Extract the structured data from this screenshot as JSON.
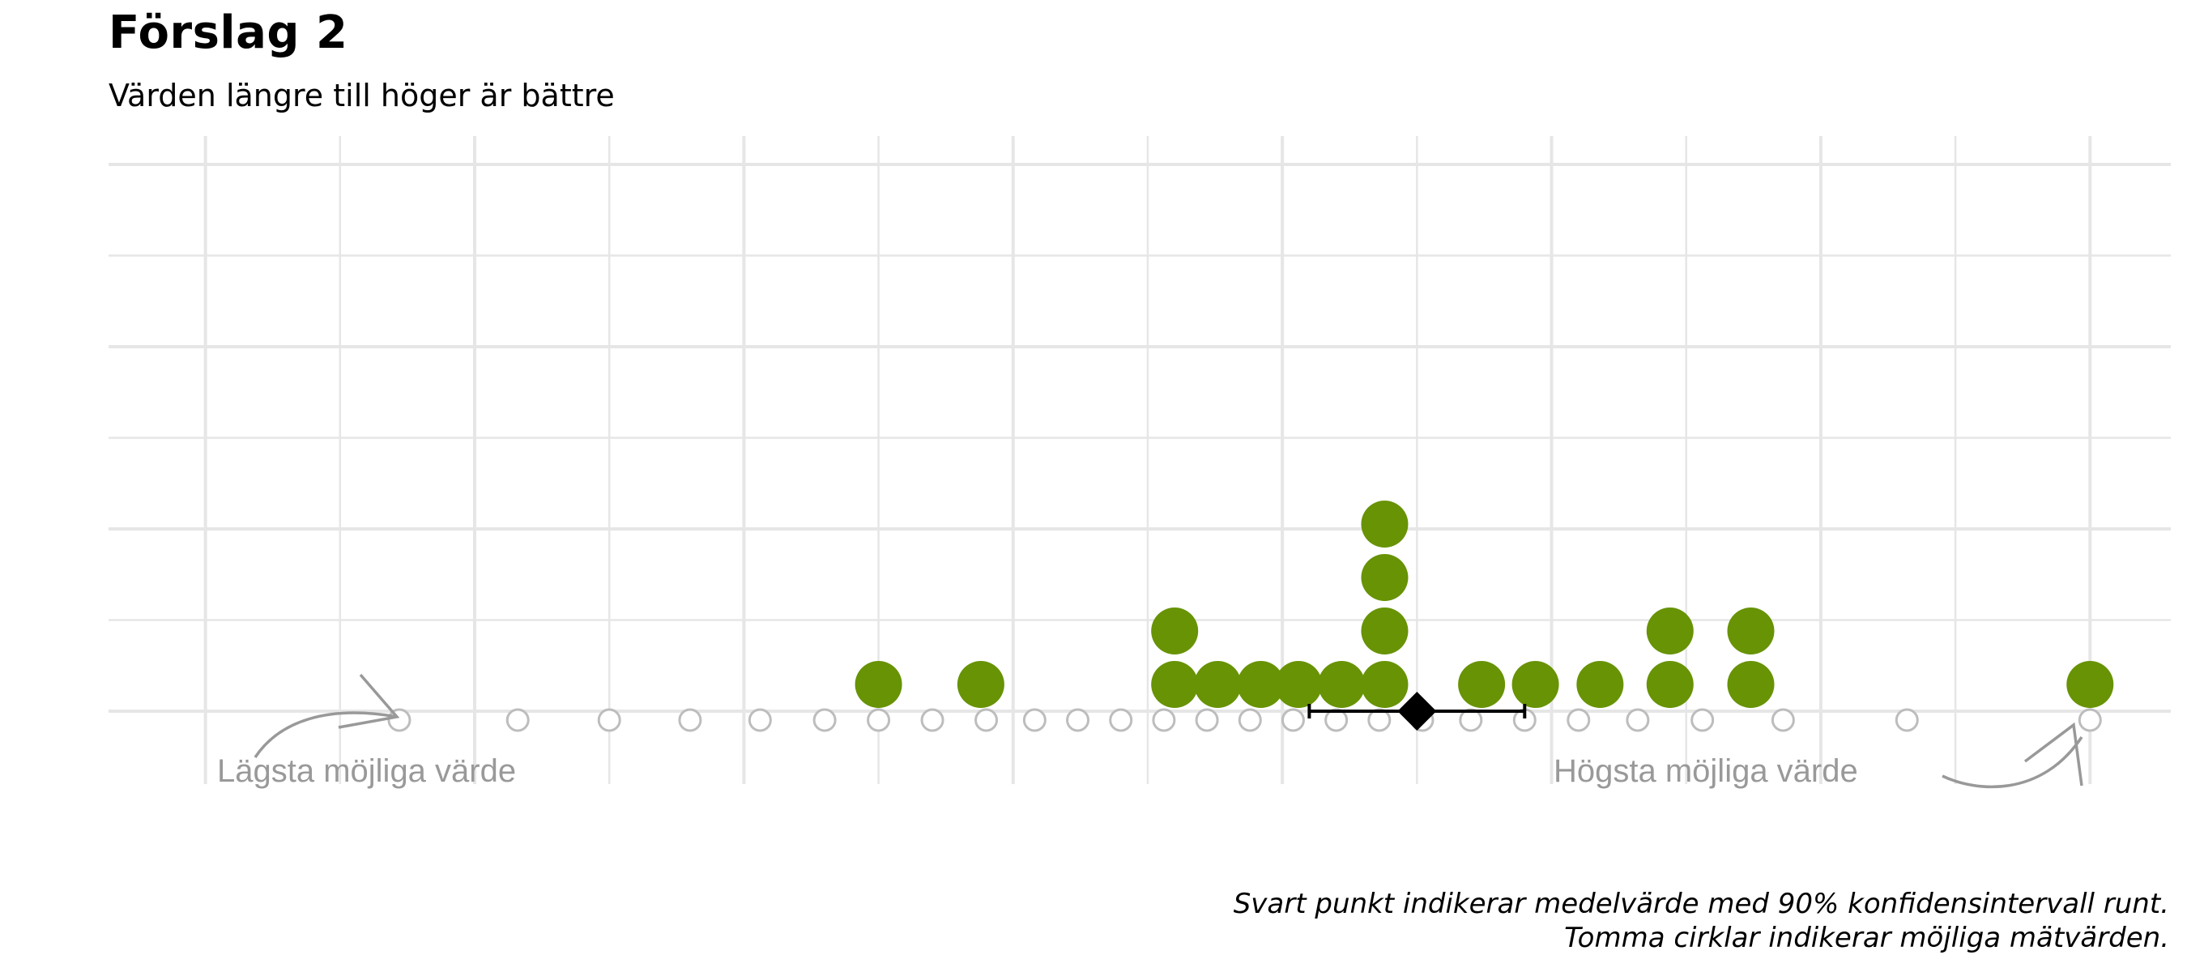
{
  "title": "Förslag 2",
  "subtitle": "Värden längre till höger är bättre",
  "annotations": {
    "low": "Lägsta möjliga värde",
    "high": "Högsta möjliga värde"
  },
  "caption": {
    "line1": "Svart punkt indikerar medelvärde med 90% konfidensintervall runt.",
    "line2": "Tomma cirklar indikerar möjliga mätvärden."
  },
  "colors": {
    "dot": "#679305",
    "possible": "#bdbdbd",
    "mean": "#000000",
    "grid": "#e6e6e6",
    "annotation": "#999999"
  },
  "chart_data": {
    "type": "dotplot",
    "xlim": [
      -0.18,
      3.65
    ],
    "grid": true,
    "possible_values": [
      0.36,
      0.58,
      0.75,
      0.9,
      1.03,
      1.15,
      1.25,
      1.35,
      1.45,
      1.54,
      1.62,
      1.7,
      1.78,
      1.86,
      1.94,
      2.02,
      2.1,
      2.18,
      2.26,
      2.35,
      2.45,
      2.55,
      2.66,
      2.78,
      2.93,
      3.16,
      3.5
    ],
    "observations": [
      {
        "x": 1.25,
        "count": 1
      },
      {
        "x": 1.44,
        "count": 1
      },
      {
        "x": 1.8,
        "count": 2
      },
      {
        "x": 1.88,
        "count": 1
      },
      {
        "x": 1.96,
        "count": 1
      },
      {
        "x": 2.03,
        "count": 1
      },
      {
        "x": 2.11,
        "count": 1
      },
      {
        "x": 2.19,
        "count": 4
      },
      {
        "x": 2.37,
        "count": 1
      },
      {
        "x": 2.47,
        "count": 1
      },
      {
        "x": 2.59,
        "count": 1
      },
      {
        "x": 2.72,
        "count": 2
      },
      {
        "x": 2.87,
        "count": 2
      },
      {
        "x": 3.5,
        "count": 1
      }
    ],
    "mean": 2.25,
    "ci": [
      2.05,
      2.45
    ]
  }
}
